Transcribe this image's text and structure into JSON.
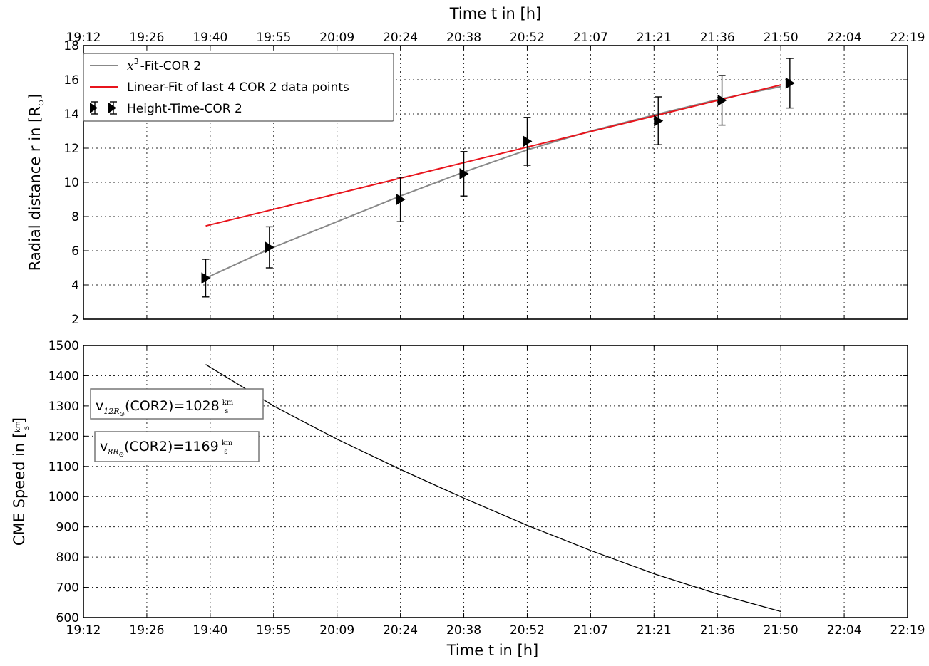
{
  "chart_data": [
    {
      "type": "scatter",
      "panel": "top",
      "top_xlabel": "Time t in [h]",
      "ylabel": "Radial distance r in [R",
      "ylabel_symbol": "⊙",
      "ylabel_close": "]",
      "x_ticks": [
        "19:12",
        "19:26",
        "19:40",
        "19:55",
        "20:09",
        "20:24",
        "20:38",
        "20:52",
        "21:07",
        "21:21",
        "21:36",
        "21:50",
        "22:04",
        "22:19"
      ],
      "y_ticks": [
        2,
        4,
        6,
        8,
        10,
        12,
        14,
        16,
        18
      ],
      "ylim": [
        2,
        18
      ],
      "grid": true,
      "legend_position": "top-left",
      "legend": [
        {
          "math": "x",
          "sup": "3",
          "label": "-Fit-COR 2",
          "color": "#888888"
        },
        {
          "label": "Linear-Fit of last 4 COR 2 data points",
          "color": "#e8141c"
        },
        {
          "label": "Height-Time-COR 2",
          "color": "#000000"
        }
      ],
      "series": [
        {
          "name": "Height-Time-COR 2",
          "kind": "errorbar",
          "x": [
            "19:39",
            "19:54",
            "20:24",
            "20:38",
            "20:52",
            "21:22",
            "21:37",
            "21:52"
          ],
          "y": [
            4.4,
            6.2,
            9.0,
            10.5,
            12.4,
            13.6,
            14.8,
            15.8
          ],
          "err": [
            1.1,
            1.2,
            1.3,
            1.3,
            1.4,
            1.4,
            1.45,
            1.45
          ]
        },
        {
          "name": "x3-Fit-COR 2",
          "kind": "line",
          "color": "#888888",
          "x": [
            "19:39",
            "19:54",
            "20:09",
            "20:24",
            "20:38",
            "20:52",
            "21:07",
            "21:22",
            "21:37",
            "21:50"
          ],
          "y": [
            4.4,
            6.1,
            7.7,
            9.2,
            10.6,
            11.9,
            13.0,
            14.0,
            14.9,
            15.6
          ]
        },
        {
          "name": "Linear-Fit of last 4 COR 2 data points",
          "kind": "line",
          "color": "#e8141c",
          "x": [
            "19:39",
            "21:50"
          ],
          "y": [
            7.45,
            15.7
          ]
        }
      ]
    },
    {
      "type": "line",
      "panel": "bottom",
      "xlabel": "Time t in [h]",
      "ylabel": "CME Speed in [",
      "ylabel_unit_num": "km",
      "ylabel_unit_den": "s",
      "ylabel_close": "]",
      "x_ticks": [
        "19:12",
        "19:26",
        "19:40",
        "19:55",
        "20:09",
        "20:24",
        "20:38",
        "20:52",
        "21:07",
        "21:21",
        "21:36",
        "21:50",
        "22:04",
        "22:19"
      ],
      "y_ticks": [
        600,
        700,
        800,
        900,
        1000,
        1100,
        1200,
        1300,
        1400,
        1500
      ],
      "ylim": [
        600,
        1500
      ],
      "grid": true,
      "series": [
        {
          "name": "",
          "color": "#000000",
          "x": [
            "19:39",
            "19:55",
            "20:09",
            "20:24",
            "20:38",
            "20:52",
            "21:07",
            "21:21",
            "21:36",
            "21:50"
          ],
          "y": [
            1437,
            1300,
            1190,
            1090,
            995,
            905,
            822,
            745,
            678,
            620
          ]
        }
      ],
      "annotations": [
        {
          "v": "v",
          "sub": "12R",
          "sub_symbol": "⊙",
          "mid": "(COR2)=1028",
          "unit_num": "km",
          "unit_den": "s"
        },
        {
          "v": "v",
          "sub": "8R",
          "sub_symbol": "⊙",
          "mid": "(COR2)=1169",
          "unit_num": "km",
          "unit_den": "s"
        }
      ]
    }
  ]
}
